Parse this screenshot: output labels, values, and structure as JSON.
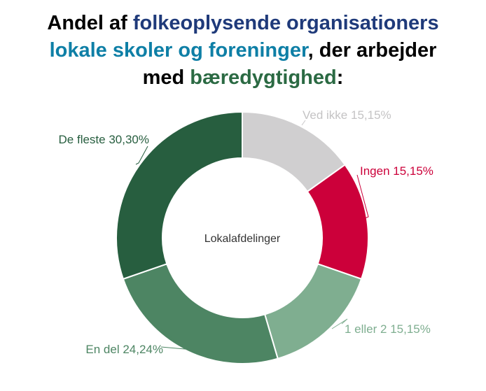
{
  "title": {
    "line1": [
      {
        "text": "Andel af ",
        "color": "#000000"
      },
      {
        "text": "folkeoplysende organisationers",
        "color": "#1f3a7a"
      }
    ],
    "line2": [
      {
        "text": "lokale skoler og foreninger",
        "color": "#0e7fa6"
      },
      {
        "text": ", der arbejder",
        "color": "#000000"
      }
    ],
    "line3": [
      {
        "text": "med ",
        "color": "#000000"
      },
      {
        "text": "bæredygtighed",
        "color": "#2b6a43"
      },
      {
        "text": ":",
        "color": "#000000"
      }
    ]
  },
  "chart_data": {
    "type": "pie",
    "style": "donut",
    "center_label": "Lokalafdelinger",
    "start": "top",
    "direction": "clockwise",
    "slices": [
      {
        "name": "Ved ikke",
        "value": 15.15,
        "value_label": "15,15%",
        "color": "#d0cfd0"
      },
      {
        "name": "Ingen",
        "value": 15.15,
        "value_label": "15,15%",
        "color": "#cc003a"
      },
      {
        "name": "1 eller 2",
        "value": 15.15,
        "value_label": "15,15%",
        "color": "#7fae90"
      },
      {
        "name": "En del",
        "value": 24.24,
        "value_label": "24,24%",
        "color": "#4d8563"
      },
      {
        "name": "De fleste",
        "value": 30.3,
        "value_label": "30,30%",
        "color": "#275e3f"
      }
    ]
  }
}
